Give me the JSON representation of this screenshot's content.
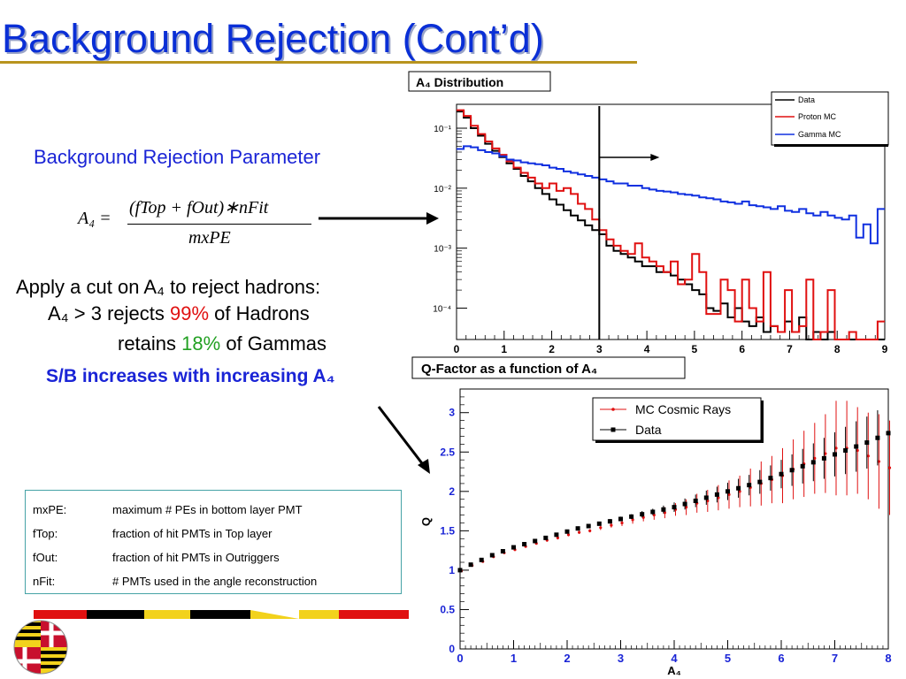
{
  "slide": {
    "title": "Background Rejection (Cont’d)",
    "param_heading": "Background Rejection Parameter",
    "formula": {
      "lhs": "A₄ =",
      "numerator": "(fTop + fOut)∗nFit",
      "denominator": "mxPE"
    },
    "cut": {
      "line1": "Apply a cut on A₄ to reject hadrons:",
      "line2_pre": "A₄ > 3 rejects ",
      "line2_pct": "99%",
      "line2_post": " of Hadrons",
      "line3_pre": "retains ",
      "line3_pct": "18%",
      "line3_post": " of Gammas"
    },
    "sb_text": "S/B increases with increasing A₄",
    "definitions": [
      {
        "term": "mxPE:",
        "desc": "maximum # PEs in bottom layer PMT"
      },
      {
        "term": "fTop:",
        "desc": "fraction of hit PMTs in Top layer"
      },
      {
        "term": "fOut:",
        "desc": "fraction of hit PMTs in Outriggers"
      },
      {
        "term": "nFit:",
        "desc": "# PMTs used in the angle reconstruction"
      }
    ],
    "colors": {
      "title": "#0a2fd6",
      "heading": "#1a24d6",
      "highlight_red": "#e01010",
      "highlight_green": "#22a022",
      "box_border": "#46a3a6"
    }
  },
  "chart_data": [
    {
      "type": "line",
      "title": "A₄ Distribution",
      "scale_y": "log",
      "xlim": [
        0,
        9
      ],
      "ylim": [
        3e-05,
        0.25
      ],
      "x_ticks": [
        "0",
        "1",
        "2",
        "3",
        "4",
        "5",
        "6",
        "7",
        "8",
        "9"
      ],
      "y_ticks": [
        "10⁻¹",
        "10⁻²",
        "10⁻³",
        "10⁻⁴"
      ],
      "cut_at": 3,
      "legend_position": "top-right",
      "x_step": 0.15,
      "series": [
        {
          "name": "Data",
          "color": "#000000",
          "values": [
            0.19,
            0.15,
            0.1,
            0.075,
            0.055,
            0.042,
            0.033,
            0.026,
            0.021,
            0.016,
            0.013,
            0.01,
            0.008,
            0.0065,
            0.0053,
            0.0043,
            0.0035,
            0.0029,
            0.0024,
            0.002,
            0.0017,
            0.0011,
            0.0009,
            0.0008,
            0.0007,
            0.0006,
            0.0005,
            0.0005,
            0.0004,
            0.0004,
            0.00035,
            0.0003,
            0.00025,
            0.0002,
            0.00017,
            0.0001,
            9e-05,
            0.00012,
            7e-05,
            0.0001,
            6e-05,
            5e-05,
            7e-05,
            4e-05,
            5e-05,
            4e-05,
            6e-05,
            4e-05,
            7e-05,
            3e-05,
            4e-05,
            3e-05,
            4e-05,
            3e-05,
            3e-05,
            3e-05,
            3e-05,
            3e-05,
            3e-05,
            3e-05
          ]
        },
        {
          "name": "Proton MC",
          "color": "#e01010",
          "values": [
            0.2,
            0.16,
            0.11,
            0.08,
            0.06,
            0.046,
            0.036,
            0.028,
            0.022,
            0.018,
            0.015,
            0.012,
            0.01,
            0.012,
            0.009,
            0.01,
            0.008,
            0.0055,
            0.0045,
            0.003,
            0.002,
            0.0014,
            0.0011,
            0.0009,
            0.0008,
            0.0012,
            0.0007,
            0.0006,
            0.0005,
            0.0004,
            0.0006,
            0.00025,
            0.0003,
            0.0008,
            0.0004,
            8e-05,
            8e-05,
            0.0003,
            0.0002,
            6e-05,
            0.0003,
            0.0001,
            6e-05,
            0.0004,
            5e-05,
            4e-05,
            0.0002,
            4e-05,
            5e-05,
            0.0003,
            3e-05,
            4e-05,
            0.0002,
            3e-05,
            3e-05,
            4e-05,
            3e-05,
            3e-05,
            3e-05,
            6e-05
          ]
        },
        {
          "name": "Gamma MC",
          "color": "#1030e0",
          "values": [
            0.045,
            0.05,
            0.048,
            0.043,
            0.04,
            0.038,
            0.034,
            0.03,
            0.029,
            0.027,
            0.026,
            0.025,
            0.024,
            0.022,
            0.021,
            0.019,
            0.018,
            0.017,
            0.016,
            0.015,
            0.014,
            0.013,
            0.012,
            0.012,
            0.011,
            0.011,
            0.01,
            0.0095,
            0.009,
            0.0088,
            0.0085,
            0.008,
            0.0078,
            0.0075,
            0.007,
            0.0068,
            0.0065,
            0.006,
            0.0058,
            0.0055,
            0.006,
            0.0052,
            0.005,
            0.0048,
            0.0045,
            0.005,
            0.0042,
            0.004,
            0.0045,
            0.0038,
            0.0035,
            0.004,
            0.0035,
            0.0032,
            0.003,
            0.0035,
            0.0015,
            0.0025,
            0.0012,
            0.0045
          ]
        }
      ]
    },
    {
      "type": "scatter",
      "title": "Q-Factor as a function of A₄",
      "xlabel": "A₄",
      "ylabel": "Q",
      "xlim": [
        0,
        8
      ],
      "ylim": [
        0,
        3.3
      ],
      "x_ticks": [
        "0",
        "1",
        "2",
        "3",
        "4",
        "5",
        "6",
        "7",
        "8"
      ],
      "y_ticks": [
        "0",
        "0.5",
        "1",
        "1.5",
        "2",
        "2.5",
        "3"
      ],
      "legend_position": "top-right",
      "series": [
        {
          "name": "MC Cosmic Rays",
          "color": "#e01010",
          "x": [
            0,
            0.2,
            0.4,
            0.6,
            0.8,
            1,
            1.2,
            1.4,
            1.6,
            1.8,
            2,
            2.2,
            2.4,
            2.6,
            2.8,
            3,
            3.2,
            3.4,
            3.6,
            3.8,
            4,
            4.2,
            4.4,
            4.6,
            4.8,
            5,
            5.2,
            5.4,
            5.6,
            5.8,
            6,
            6.2,
            6.4,
            6.6,
            6.8,
            7,
            7.2,
            7.4,
            7.6,
            7.8,
            8
          ],
          "y": [
            0.99,
            1.06,
            1.11,
            1.17,
            1.22,
            1.26,
            1.3,
            1.34,
            1.38,
            1.41,
            1.45,
            1.48,
            1.5,
            1.54,
            1.57,
            1.6,
            1.64,
            1.67,
            1.7,
            1.73,
            1.77,
            1.8,
            1.85,
            1.88,
            1.92,
            1.96,
            2,
            2.05,
            2.1,
            2.15,
            2.2,
            2.28,
            2.35,
            2.42,
            2.48,
            2.55,
            2.55,
            2.52,
            2.45,
            2.38,
            2.3
          ],
          "err": [
            0.01,
            0.01,
            0.01,
            0.01,
            0.01,
            0.01,
            0.01,
            0.01,
            0.02,
            0.02,
            0.02,
            0.02,
            0.02,
            0.03,
            0.03,
            0.04,
            0.05,
            0.05,
            0.06,
            0.07,
            0.08,
            0.1,
            0.12,
            0.14,
            0.16,
            0.18,
            0.2,
            0.24,
            0.28,
            0.3,
            0.35,
            0.38,
            0.42,
            0.45,
            0.5,
            0.6,
            0.6,
            0.55,
            0.55,
            0.6,
            0.6
          ]
        },
        {
          "name": "Data",
          "color": "#000000",
          "x": [
            0,
            0.2,
            0.4,
            0.6,
            0.8,
            1,
            1.2,
            1.4,
            1.6,
            1.8,
            2,
            2.2,
            2.4,
            2.6,
            2.8,
            3,
            3.2,
            3.4,
            3.6,
            3.8,
            4,
            4.2,
            4.4,
            4.6,
            4.8,
            5,
            5.2,
            5.4,
            5.6,
            5.8,
            6,
            6.2,
            6.4,
            6.6,
            6.8,
            7,
            7.2,
            7.4,
            7.6,
            7.8,
            8
          ],
          "y": [
            1,
            1.07,
            1.13,
            1.19,
            1.24,
            1.29,
            1.33,
            1.37,
            1.41,
            1.45,
            1.49,
            1.53,
            1.56,
            1.59,
            1.62,
            1.65,
            1.68,
            1.71,
            1.74,
            1.77,
            1.8,
            1.84,
            1.88,
            1.92,
            1.96,
            2,
            2.04,
            2.08,
            2.12,
            2.17,
            2.22,
            2.27,
            2.32,
            2.37,
            2.42,
            2.47,
            2.52,
            2.57,
            2.62,
            2.68,
            2.74
          ],
          "err": [
            0.01,
            0.01,
            0.01,
            0.01,
            0.01,
            0.01,
            0.01,
            0.01,
            0.01,
            0.01,
            0.02,
            0.02,
            0.02,
            0.02,
            0.03,
            0.03,
            0.03,
            0.04,
            0.04,
            0.05,
            0.06,
            0.07,
            0.08,
            0.09,
            0.1,
            0.11,
            0.12,
            0.13,
            0.15,
            0.16,
            0.18,
            0.2,
            0.22,
            0.24,
            0.26,
            0.28,
            0.3,
            0.32,
            0.33,
            0.35,
            0.36
          ]
        }
      ]
    }
  ]
}
